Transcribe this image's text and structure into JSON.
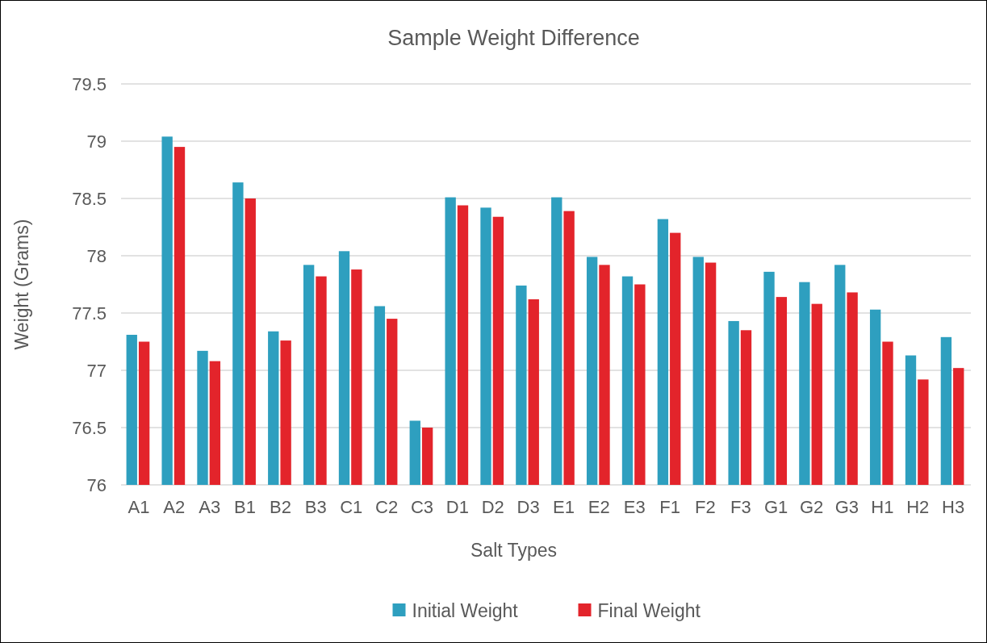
{
  "chart_data": {
    "type": "bar",
    "title": "Sample Weight Difference",
    "xlabel": "Salt Types",
    "ylabel": "Weight (Grams)",
    "categories": [
      "A1",
      "A2",
      "A3",
      "B1",
      "B2",
      "B3",
      "C1",
      "C2",
      "C3",
      "D1",
      "D2",
      "D3",
      "E1",
      "E2",
      "E3",
      "F1",
      "F2",
      "F3",
      "G1",
      "G2",
      "G3",
      "H1",
      "H2",
      "H3"
    ],
    "series": [
      {
        "name": "Initial Weight",
        "color": "#2e9fbf",
        "values": [
          77.31,
          79.04,
          77.17,
          78.64,
          77.34,
          77.92,
          78.04,
          77.56,
          76.56,
          78.51,
          78.42,
          77.74,
          78.51,
          77.99,
          77.82,
          78.32,
          77.99,
          77.43,
          77.86,
          77.77,
          77.92,
          77.53,
          77.13,
          77.29
        ]
      },
      {
        "name": "Final Weight",
        "color": "#e3242b",
        "values": [
          77.25,
          78.95,
          77.08,
          78.5,
          77.26,
          77.82,
          77.88,
          77.45,
          76.5,
          78.44,
          78.34,
          77.62,
          78.39,
          77.92,
          77.75,
          78.2,
          77.94,
          77.35,
          77.64,
          77.58,
          77.68,
          77.25,
          76.92,
          77.02
        ]
      }
    ],
    "ylim": [
      76,
      79.5
    ],
    "yticks": [
      76,
      76.5,
      77,
      77.5,
      78,
      78.5,
      79,
      79.5
    ],
    "grid": "y",
    "legend": "bottom"
  }
}
